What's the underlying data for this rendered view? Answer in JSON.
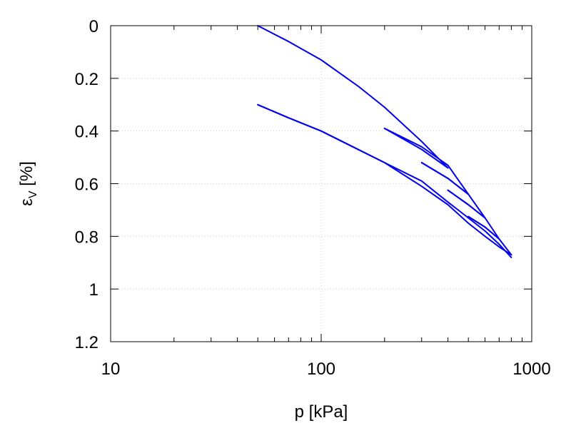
{
  "chart_data": {
    "type": "line",
    "xlabel": "p [kPa]",
    "ylabel": {
      "main": "ε",
      "sub": "V",
      "unit": " [%]"
    },
    "x_scale": "log",
    "xlim": [
      10,
      1000
    ],
    "ylim": [
      0,
      1.2
    ],
    "y_inverted": true,
    "x_ticks": [
      10,
      100,
      1000
    ],
    "x_tick_labels": [
      "10",
      "100",
      "1000"
    ],
    "y_ticks": [
      0,
      0.2,
      0.4,
      0.6,
      0.8,
      1,
      1.2
    ],
    "y_tick_labels": [
      "0",
      "0.2",
      "0.4",
      "0.6",
      "0.8",
      "1",
      "1.2"
    ],
    "grid": true,
    "legend": "none",
    "line_color": "#0000ee",
    "series": [
      {
        "points": [
          [
            50,
            0.0
          ],
          [
            70,
            0.06
          ],
          [
            100,
            0.13
          ],
          [
            150,
            0.23
          ],
          [
            200,
            0.31
          ],
          [
            300,
            0.44
          ],
          [
            400,
            0.54
          ]
        ]
      },
      {
        "points": [
          [
            400,
            0.54
          ],
          [
            300,
            0.47
          ],
          [
            200,
            0.39
          ]
        ]
      },
      {
        "points": [
          [
            200,
            0.39
          ],
          [
            300,
            0.46
          ],
          [
            400,
            0.53
          ],
          [
            500,
            0.64
          ]
        ]
      },
      {
        "points": [
          [
            500,
            0.64
          ],
          [
            400,
            0.58
          ],
          [
            300,
            0.52
          ]
        ]
      },
      {
        "points": [
          [
            300,
            0.52
          ],
          [
            400,
            0.58
          ],
          [
            500,
            0.64
          ],
          [
            600,
            0.73
          ]
        ]
      },
      {
        "points": [
          [
            600,
            0.73
          ],
          [
            500,
            0.68
          ],
          [
            400,
            0.625
          ]
        ]
      },
      {
        "points": [
          [
            400,
            0.625
          ],
          [
            500,
            0.68
          ],
          [
            600,
            0.73
          ],
          [
            700,
            0.81
          ]
        ]
      },
      {
        "points": [
          [
            700,
            0.81
          ],
          [
            600,
            0.765
          ],
          [
            500,
            0.725
          ]
        ]
      },
      {
        "points": [
          [
            500,
            0.725
          ],
          [
            600,
            0.765
          ],
          [
            700,
            0.81
          ],
          [
            800,
            0.87
          ]
        ]
      },
      {
        "points": [
          [
            800,
            0.87
          ],
          [
            700,
            0.84
          ],
          [
            600,
            0.8
          ],
          [
            500,
            0.75
          ],
          [
            400,
            0.68
          ],
          [
            300,
            0.61
          ],
          [
            200,
            0.52
          ],
          [
            100,
            0.4
          ],
          [
            70,
            0.35
          ],
          [
            50,
            0.3
          ]
        ]
      },
      {
        "points": [
          [
            50,
            0.3
          ],
          [
            70,
            0.35
          ],
          [
            100,
            0.4
          ],
          [
            200,
            0.52
          ],
          [
            300,
            0.59
          ],
          [
            400,
            0.67
          ],
          [
            500,
            0.73
          ],
          [
            600,
            0.78
          ],
          [
            700,
            0.83
          ],
          [
            800,
            0.88
          ]
        ]
      }
    ]
  }
}
